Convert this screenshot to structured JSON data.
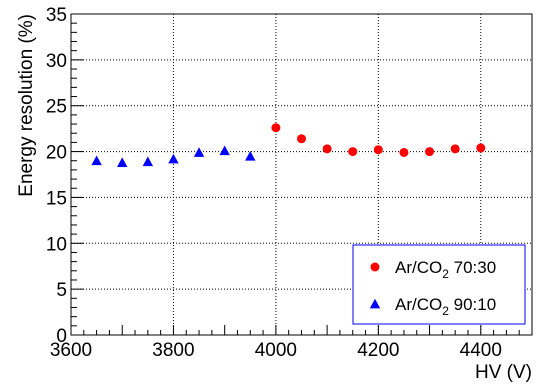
{
  "chart_data": {
    "type": "scatter",
    "title": "",
    "xlabel": "HV (V)",
    "ylabel": "Energy resolution (%)",
    "xlim": [
      3600,
      4500
    ],
    "ylim": [
      0,
      35
    ],
    "x_ticks": [
      3600,
      3800,
      4000,
      4200,
      4400
    ],
    "y_ticks": [
      0,
      5,
      10,
      15,
      20,
      25,
      30,
      35
    ],
    "grid": true,
    "legend_position": "bottom-right",
    "series": [
      {
        "name": "Ar/CO2 70:30",
        "legend_main": "Ar/CO",
        "legend_sub": "2",
        "legend_tail": " 70:30",
        "marker": "circle",
        "color": "#ff0000",
        "points": [
          {
            "x": 4000,
            "y": 22.6
          },
          {
            "x": 4050,
            "y": 21.4
          },
          {
            "x": 4100,
            "y": 20.3
          },
          {
            "x": 4150,
            "y": 20.0
          },
          {
            "x": 4200,
            "y": 20.2
          },
          {
            "x": 4250,
            "y": 19.9
          },
          {
            "x": 4300,
            "y": 20.0
          },
          {
            "x": 4350,
            "y": 20.3
          },
          {
            "x": 4400,
            "y": 20.4
          }
        ]
      },
      {
        "name": "Ar/CO2 90:10",
        "legend_main": "Ar/CO",
        "legend_sub": "2",
        "legend_tail": " 90:10",
        "marker": "triangle",
        "color": "#0000ff",
        "points": [
          {
            "x": 3650,
            "y": 19.0
          },
          {
            "x": 3700,
            "y": 18.8
          },
          {
            "x": 3750,
            "y": 18.9
          },
          {
            "x": 3800,
            "y": 19.2
          },
          {
            "x": 3850,
            "y": 19.9
          },
          {
            "x": 3900,
            "y": 20.1
          },
          {
            "x": 3950,
            "y": 19.5
          }
        ]
      }
    ]
  }
}
